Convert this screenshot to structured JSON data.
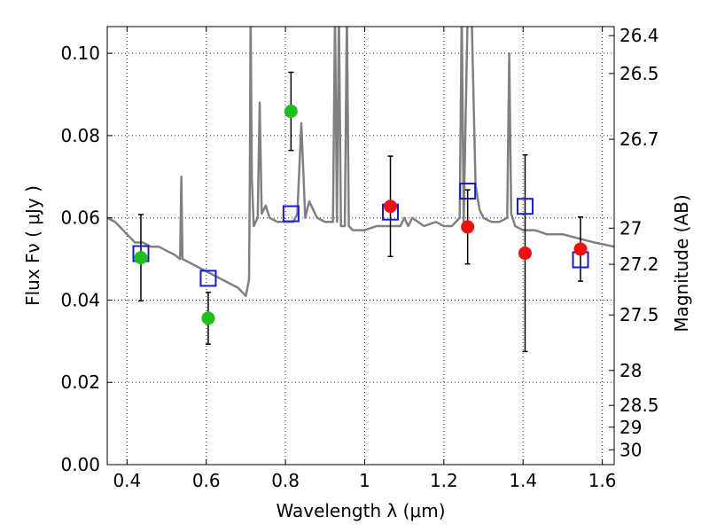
{
  "chart_data": {
    "type": "scatter",
    "xlabel": "Wavelength  λ (μm)",
    "ylabel": "Flux  Fν  ( μJy )",
    "ylabel_right": "Magnitude (AB)",
    "xlim": [
      0.35,
      1.63
    ],
    "ylim": [
      0.0,
      0.1065
    ],
    "grid": true,
    "x_ticks": [
      0.4,
      0.6,
      0.8,
      1.0,
      1.2,
      1.4,
      1.6
    ],
    "x_tick_labels": [
      "0.4",
      "0.6",
      "0.8",
      "1",
      "1.2",
      "1.4",
      "1.6"
    ],
    "y_ticks": [
      0.0,
      0.02,
      0.04,
      0.06,
      0.08,
      0.1
    ],
    "y_tick_labels": [
      "0.00",
      "0.02",
      "0.04",
      "0.06",
      "0.08",
      "0.10"
    ],
    "right_ticks": [
      {
        "flux": 0.1043,
        "label": "26.4"
      },
      {
        "flux": 0.0951,
        "label": "26.5"
      },
      {
        "flux": 0.0791,
        "label": "26.7"
      },
      {
        "flux": 0.0575,
        "label": "27"
      },
      {
        "flux": 0.0487,
        "label": "27.2"
      },
      {
        "flux": 0.0364,
        "label": "27.5"
      },
      {
        "flux": 0.0229,
        "label": "28"
      },
      {
        "flux": 0.0144,
        "label": "28.5"
      },
      {
        "flux": 0.0091,
        "label": "29"
      },
      {
        "flux": 0.0036,
        "label": "30"
      }
    ],
    "series": [
      {
        "color": "#808080",
        "x": [
          0.35,
          0.37,
          0.39,
          0.4,
          0.42,
          0.44,
          0.46,
          0.48,
          0.5,
          0.52,
          0.534,
          0.537,
          0.54,
          0.56,
          0.58,
          0.6,
          0.62,
          0.64,
          0.66,
          0.68,
          0.7,
          0.708,
          0.71,
          0.712,
          0.715,
          0.72,
          0.73,
          0.735,
          0.74,
          0.75,
          0.76,
          0.78,
          0.8,
          0.82,
          0.83,
          0.84,
          0.85,
          0.86,
          0.88,
          0.9,
          0.92,
          0.925,
          0.93,
          0.935,
          0.94,
          0.95,
          0.955,
          0.96,
          0.97,
          1.0,
          1.03,
          1.06,
          1.09,
          1.1,
          1.11,
          1.12,
          1.15,
          1.18,
          1.2,
          1.22,
          1.24,
          1.245,
          1.25,
          1.26,
          1.27,
          1.28,
          1.29,
          1.3,
          1.32,
          1.34,
          1.36,
          1.365,
          1.37,
          1.38,
          1.4,
          1.43,
          1.46,
          1.5,
          1.54,
          1.58,
          1.63
        ],
        "y": [
          0.06,
          0.059,
          0.057,
          0.056,
          0.054,
          0.054,
          0.053,
          0.053,
          0.052,
          0.051,
          0.05,
          0.07,
          0.05,
          0.049,
          0.048,
          0.047,
          0.046,
          0.045,
          0.044,
          0.043,
          0.041,
          0.045,
          0.07,
          0.11,
          0.07,
          0.058,
          0.06,
          0.088,
          0.061,
          0.063,
          0.06,
          0.059,
          0.059,
          0.059,
          0.061,
          0.083,
          0.06,
          0.064,
          0.06,
          0.059,
          0.059,
          0.11,
          0.059,
          0.11,
          0.058,
          0.058,
          0.11,
          0.058,
          0.057,
          0.057,
          0.058,
          0.058,
          0.058,
          0.06,
          0.058,
          0.06,
          0.058,
          0.059,
          0.058,
          0.058,
          0.06,
          0.11,
          0.059,
          0.11,
          0.11,
          0.068,
          0.062,
          0.06,
          0.059,
          0.059,
          0.06,
          0.1,
          0.061,
          0.058,
          0.057,
          0.057,
          0.056,
          0.056,
          0.055,
          0.054,
          0.053
        ]
      }
    ],
    "observed_green": [
      {
        "x": 0.435,
        "y": 0.0503,
        "err": 0.0105
      },
      {
        "x": 0.605,
        "y": 0.0356,
        "err": 0.0063
      },
      {
        "x": 0.814,
        "y": 0.0859,
        "err": 0.0095
      }
    ],
    "observed_red": [
      {
        "x": 1.065,
        "y": 0.0628,
        "err": 0.0122
      },
      {
        "x": 1.26,
        "y": 0.0578,
        "err": 0.009
      },
      {
        "x": 1.405,
        "y": 0.0514,
        "err": 0.0239
      },
      {
        "x": 1.545,
        "y": 0.0524,
        "err": 0.0078
      }
    ],
    "model_squares": [
      {
        "x": 0.435,
        "y": 0.0513
      },
      {
        "x": 0.605,
        "y": 0.0453
      },
      {
        "x": 0.814,
        "y": 0.061
      },
      {
        "x": 1.065,
        "y": 0.0614
      },
      {
        "x": 1.26,
        "y": 0.0665
      },
      {
        "x": 1.405,
        "y": 0.0628
      },
      {
        "x": 1.545,
        "y": 0.0498
      }
    ],
    "colors": {
      "spectrum": "#808080",
      "green": "#1fbf1f",
      "red": "#ee1111",
      "square": "#1a1acc",
      "errorbar": "#000000"
    }
  }
}
